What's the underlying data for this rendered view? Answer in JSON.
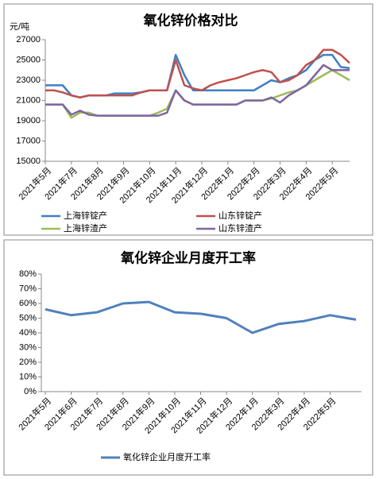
{
  "chart_data": [
    {
      "type": "line",
      "title": "氧化锌价格对比",
      "y_label": "元/吨",
      "categories": [
        "2021年5月",
        null,
        null,
        "2021年7月",
        null,
        null,
        "2021年8月",
        null,
        null,
        "2021年9月",
        null,
        null,
        "2021年10月",
        null,
        null,
        "2021年11月",
        null,
        null,
        "2021年12月",
        null,
        null,
        "2022年1月",
        null,
        null,
        "2022年2月",
        null,
        null,
        "2022年3月",
        null,
        null,
        "2022年4月",
        null,
        null,
        "2022年5月",
        null,
        null
      ],
      "ylim": [
        15000,
        27000
      ],
      "yticks": [
        15000,
        17000,
        19000,
        21000,
        23000,
        25000,
        27000
      ],
      "grid": false,
      "series": [
        {
          "name": "上海锌锭产",
          "color": "#3f7fc4",
          "values": [
            22500,
            22500,
            22500,
            21500,
            21300,
            21500,
            21500,
            21500,
            21700,
            21700,
            21700,
            21800,
            22000,
            22000,
            22000,
            25500,
            23500,
            22000,
            22000,
            22000,
            22000,
            22000,
            22000,
            22000,
            22000,
            22500,
            23000,
            22800,
            23200,
            23500,
            24000,
            25000,
            25500,
            25500,
            24300,
            24200
          ]
        },
        {
          "name": "山东锌锭产",
          "color": "#c0504d",
          "values": [
            22000,
            22000,
            21800,
            21500,
            21300,
            21500,
            21500,
            21500,
            21500,
            21500,
            21500,
            21800,
            22000,
            22000,
            22000,
            25000,
            22500,
            22200,
            22000,
            22500,
            22800,
            23000,
            23200,
            23500,
            23800,
            24000,
            23800,
            22800,
            23000,
            23500,
            24500,
            25000,
            26000,
            26000,
            25500,
            24700
          ]
        },
        {
          "name": "上海锌渣产",
          "color": "#9bbb59",
          "values": [
            20600,
            20600,
            20600,
            19300,
            19800,
            19800,
            19500,
            19500,
            19500,
            19500,
            19500,
            19500,
            19500,
            19800,
            20200,
            22000,
            21000,
            20600,
            20600,
            20600,
            20600,
            20600,
            20600,
            21000,
            21000,
            21000,
            21200,
            21500,
            21800,
            22000,
            22500,
            23000,
            23500,
            24000,
            23500,
            23000
          ]
        },
        {
          "name": "山东锌渣产",
          "color": "#8064a2",
          "values": [
            20600,
            20600,
            20600,
            19600,
            20000,
            19600,
            19500,
            19500,
            19500,
            19500,
            19500,
            19500,
            19500,
            19500,
            19800,
            22000,
            21000,
            20600,
            20600,
            20600,
            20600,
            20600,
            20600,
            21000,
            21000,
            21000,
            21300,
            20800,
            21500,
            22000,
            22500,
            23500,
            24500,
            24000,
            24000,
            24000
          ]
        }
      ]
    },
    {
      "type": "line",
      "title": "氧化锌企业月度开工率",
      "categories": [
        "2021年5月",
        "2021年6月",
        "2021年7月",
        "2021年8月",
        "2021年9月",
        "2021年10月",
        "2021年11月",
        "2021年12月",
        "2022年1月",
        "2022年3月",
        "2022年4月",
        "2022年5月",
        null
      ],
      "ylim": [
        0,
        80
      ],
      "yticks": [
        {
          "value": 0,
          "label": "0%"
        },
        {
          "value": 10,
          "label": "10%"
        },
        {
          "value": 20,
          "label": "20%"
        },
        {
          "value": 30,
          "label": "30%"
        },
        {
          "value": 40,
          "label": "40%"
        },
        {
          "value": 50,
          "label": "50%"
        },
        {
          "value": 60,
          "label": "60%"
        },
        {
          "value": 70,
          "label": "70%"
        },
        {
          "value": 80,
          "label": "80%"
        }
      ],
      "grid": false,
      "series": [
        {
          "name": "氧化锌企业月度开工率",
          "color": "#4f81bd",
          "values": [
            56,
            52,
            54,
            60,
            61,
            54,
            53,
            50,
            40,
            46,
            48,
            52,
            49
          ]
        }
      ]
    }
  ]
}
